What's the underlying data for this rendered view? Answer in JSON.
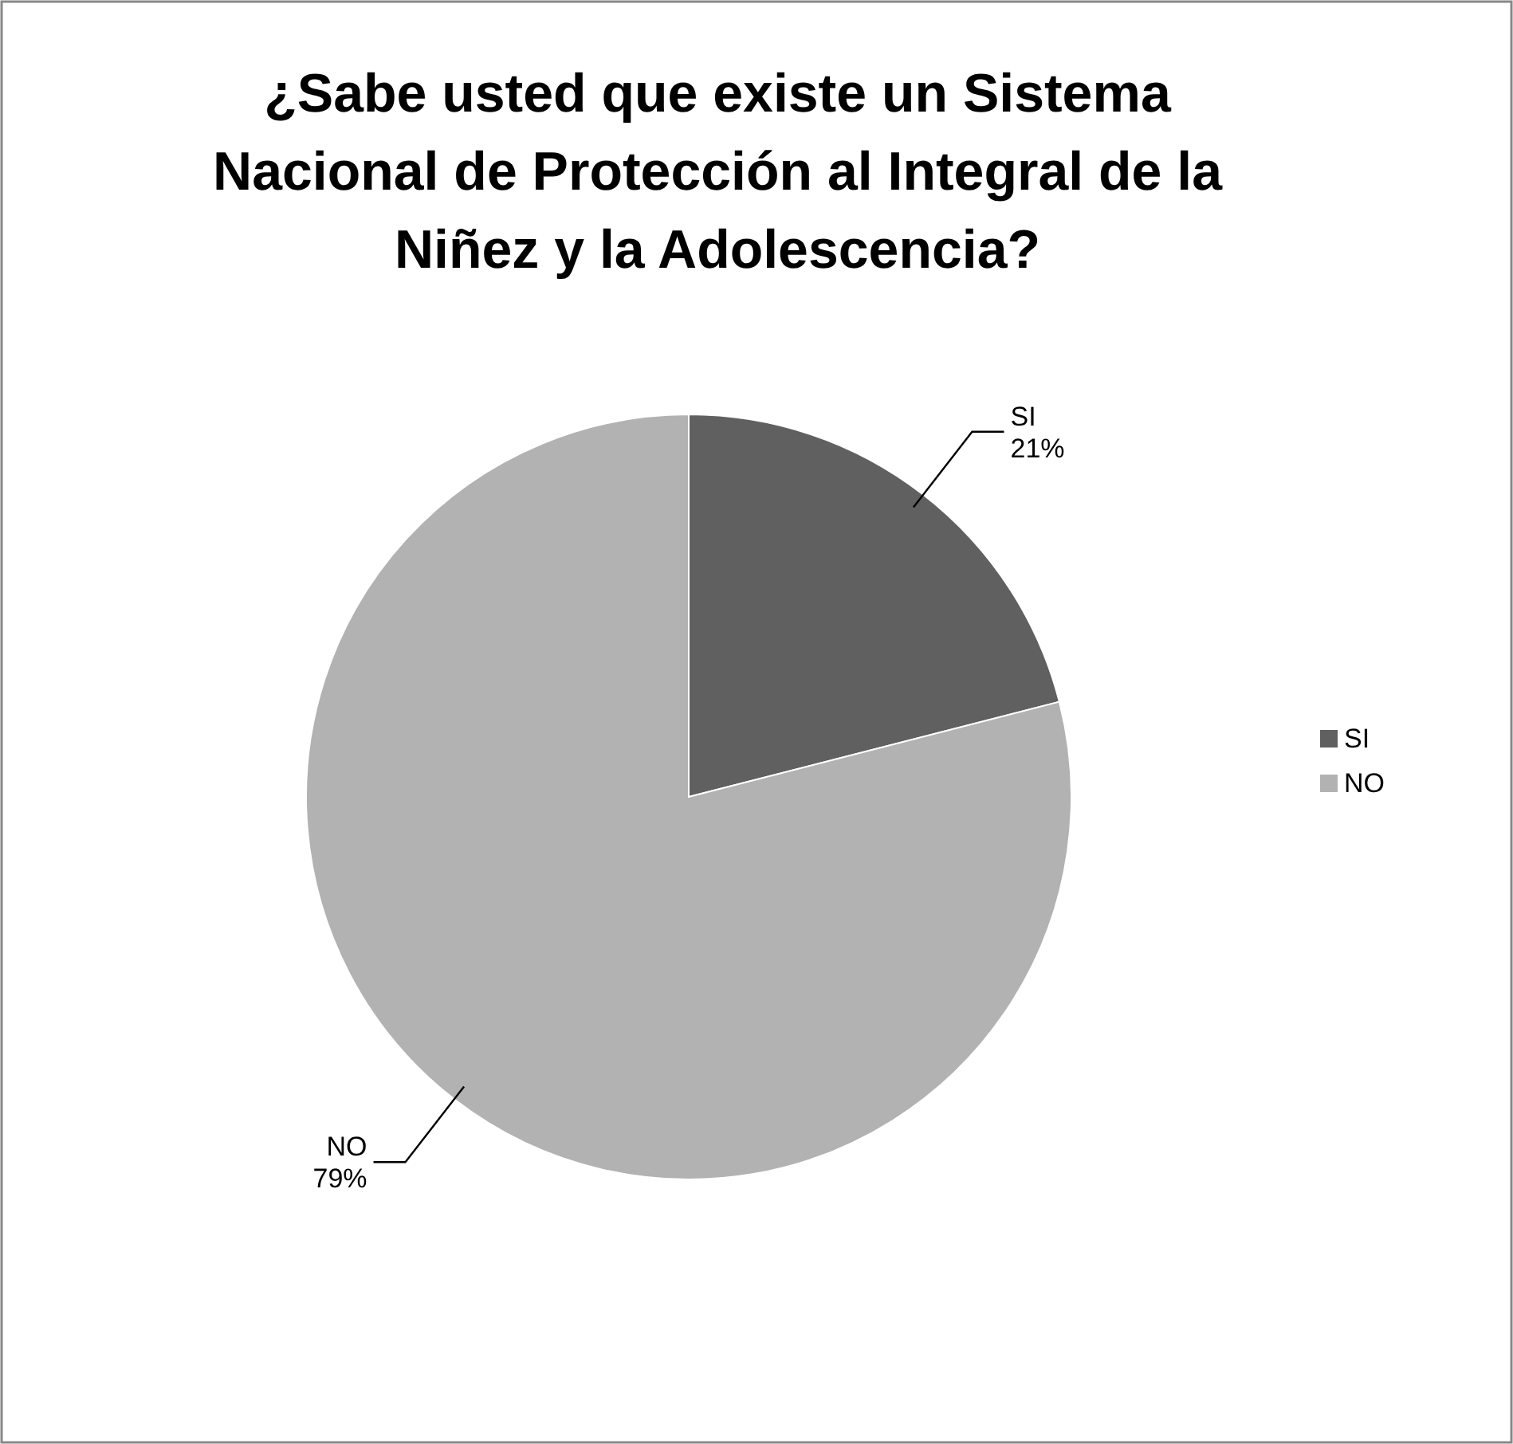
{
  "chart_data": {
    "type": "pie",
    "title": "¿Sabe usted que existe un Sistema Nacional de Protección al Integral de la Niñez y la Adolescencia?",
    "categories": [
      "SI",
      "NO"
    ],
    "values": [
      21,
      79
    ],
    "value_labels": [
      "21%",
      "79%"
    ],
    "colors": [
      "#606060",
      "#b2b2b2"
    ],
    "legend": "right"
  }
}
